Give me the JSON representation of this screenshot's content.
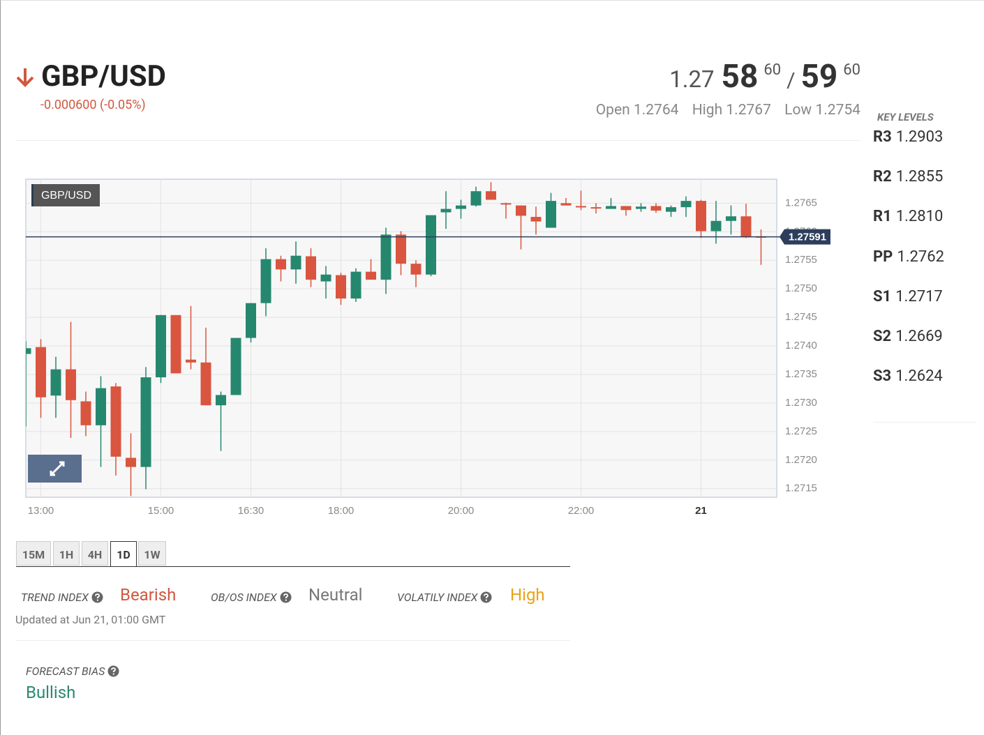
{
  "header": {
    "symbol": "GBP/USD",
    "change": "-0.000600 (-0.05%)"
  },
  "quote": {
    "bid_big": "1.27",
    "bid_pips": "58",
    "bid_fraction": "60",
    "separator": "/",
    "ask_pips": "59",
    "ask_fraction": "60",
    "open_label": "Open",
    "open": "1.2764",
    "high_label": "High",
    "high": "1.2767",
    "low_label": "Low",
    "low": "1.2754"
  },
  "key_levels": {
    "title": "KEY LEVELS",
    "levels": [
      {
        "name": "R3",
        "value": "1.2903"
      },
      {
        "name": "R2",
        "value": "1.2855"
      },
      {
        "name": "R1",
        "value": "1.2810"
      },
      {
        "name": "PP",
        "value": "1.2762"
      },
      {
        "name": "S1",
        "value": "1.2717"
      },
      {
        "name": "S2",
        "value": "1.2669"
      },
      {
        "name": "S3",
        "value": "1.2624"
      }
    ]
  },
  "chart_data": {
    "type": "candlestick",
    "title": "GBP/USD",
    "categories": [
      null,
      "13:00",
      null,
      null,
      null,
      null,
      null,
      null,
      null,
      "15:00",
      null,
      null,
      null,
      null,
      null,
      "16:30",
      null,
      null,
      null,
      null,
      null,
      "18:00",
      null,
      null,
      null,
      null,
      null,
      null,
      null,
      "20:00",
      null,
      null,
      null,
      null,
      null,
      null,
      null,
      "22:00",
      null,
      null,
      null,
      null,
      null,
      null,
      null,
      "21",
      null,
      null,
      null,
      null
    ],
    "open": [
      1.27386,
      1.27398,
      1.27313,
      1.27359,
      1.27303,
      1.27261,
      1.27329,
      1.27204,
      1.27188,
      1.27345,
      1.27454,
      1.27376,
      1.27371,
      1.27296,
      1.27314,
      1.27414,
      1.27475,
      1.27552,
      1.27534,
      1.27557,
      1.27513,
      1.27524,
      1.27483,
      1.2753,
      1.27516,
      1.27595,
      1.27544,
      1.27525,
      1.27634,
      1.2764,
      1.27646,
      1.27671,
      1.2765,
      1.27646,
      1.27626,
      1.27607,
      1.2765,
      1.27645,
      1.27643,
      1.2764,
      1.27645,
      1.2764,
      1.27645,
      1.27635,
      1.27643,
      1.27654,
      1.27601,
      1.27619,
      1.27627,
      1.27592
    ],
    "high": [
      1.27408,
      1.27412,
      1.27381,
      1.27442,
      1.2732,
      1.27347,
      1.27335,
      1.27247,
      1.27363,
      1.27454,
      1.27454,
      1.2747,
      1.27432,
      1.2732,
      1.27414,
      1.27475,
      1.27571,
      1.27558,
      1.27583,
      1.27571,
      1.2754,
      1.27528,
      1.27536,
      1.27552,
      1.27607,
      1.27601,
      1.2755,
      1.27629,
      1.27671,
      1.27656,
      1.27679,
      1.27687,
      1.27651,
      1.27646,
      1.27644,
      1.27668,
      1.27659,
      1.27672,
      1.2765,
      1.27659,
      1.27645,
      1.2765,
      1.2765,
      1.27646,
      1.27662,
      1.27656,
      1.27654,
      1.27646,
      1.27649,
      1.27604
    ],
    "low": [
      1.27259,
      1.27274,
      1.27274,
      1.27239,
      1.27242,
      1.27188,
      1.27173,
      1.27137,
      1.27149,
      1.27335,
      1.27352,
      1.27359,
      1.27296,
      1.27216,
      1.27314,
      1.27406,
      1.27452,
      1.27513,
      1.27509,
      1.27503,
      1.27483,
      1.27472,
      1.27477,
      1.27516,
      1.27491,
      1.27524,
      1.27503,
      1.27522,
      1.27605,
      1.27623,
      1.27644,
      1.27656,
      1.27623,
      1.27569,
      1.27595,
      1.27607,
      1.27646,
      1.27638,
      1.27632,
      1.2764,
      1.27628,
      1.27635,
      1.27633,
      1.27626,
      1.27626,
      1.27589,
      1.27579,
      1.27595,
      1.27589,
      1.27542
    ],
    "close": [
      1.27396,
      1.2731,
      1.27359,
      1.27305,
      1.27261,
      1.27326,
      1.27206,
      1.27188,
      1.27345,
      1.27454,
      1.27352,
      1.27371,
      1.27296,
      1.27314,
      1.27414,
      1.27475,
      1.27552,
      1.27534,
      1.27558,
      1.27516,
      1.27525,
      1.27483,
      1.2753,
      1.27516,
      1.27595,
      1.27544,
      1.27525,
      1.27629,
      1.2764,
      1.27646,
      1.27671,
      1.27656,
      1.27649,
      1.27628,
      1.27618,
      1.27654,
      1.27646,
      1.27643,
      1.27642,
      1.27645,
      1.27638,
      1.27644,
      1.27637,
      1.27643,
      1.27654,
      1.27601,
      1.27619,
      1.27627,
      1.27591,
      1.27591
    ],
    "up_color": "#26876f",
    "down_color": "#d9553f",
    "ylim": [
      1.27135,
      1.27692
    ],
    "yticks": [
      1.2715,
      {
        "value": 1.272,
        "label": "1.2720"
      },
      1.2725,
      {
        "value": 1.273,
        "label": "1.2730"
      },
      1.2735,
      {
        "value": 1.274,
        "label": "1.2740"
      },
      1.2745,
      {
        "value": 1.275,
        "label": "1.2750"
      },
      1.2755,
      {
        "value": 1.276,
        "label": "1.2760"
      },
      1.2765
    ],
    "last_price": 1.27591,
    "grid": true
  },
  "timeframes": {
    "options": [
      "15M",
      "1H",
      "4H",
      "1D",
      "1W"
    ],
    "active": 3
  },
  "indices": [
    {
      "label": "TREND INDEX",
      "value": "Bearish",
      "color": "#d0583f"
    },
    {
      "label": "OB/OS INDEX",
      "value": "Neutral",
      "color": "#777777"
    },
    {
      "label": "VOLATILY INDEX",
      "value": "High",
      "color": "#e8a317"
    }
  ],
  "updated": "Updated at Jun 21, 01:00 GMT",
  "forecast": {
    "label": "FORECAST BIAS",
    "value": "Bullish",
    "color": "#2a8a72"
  }
}
